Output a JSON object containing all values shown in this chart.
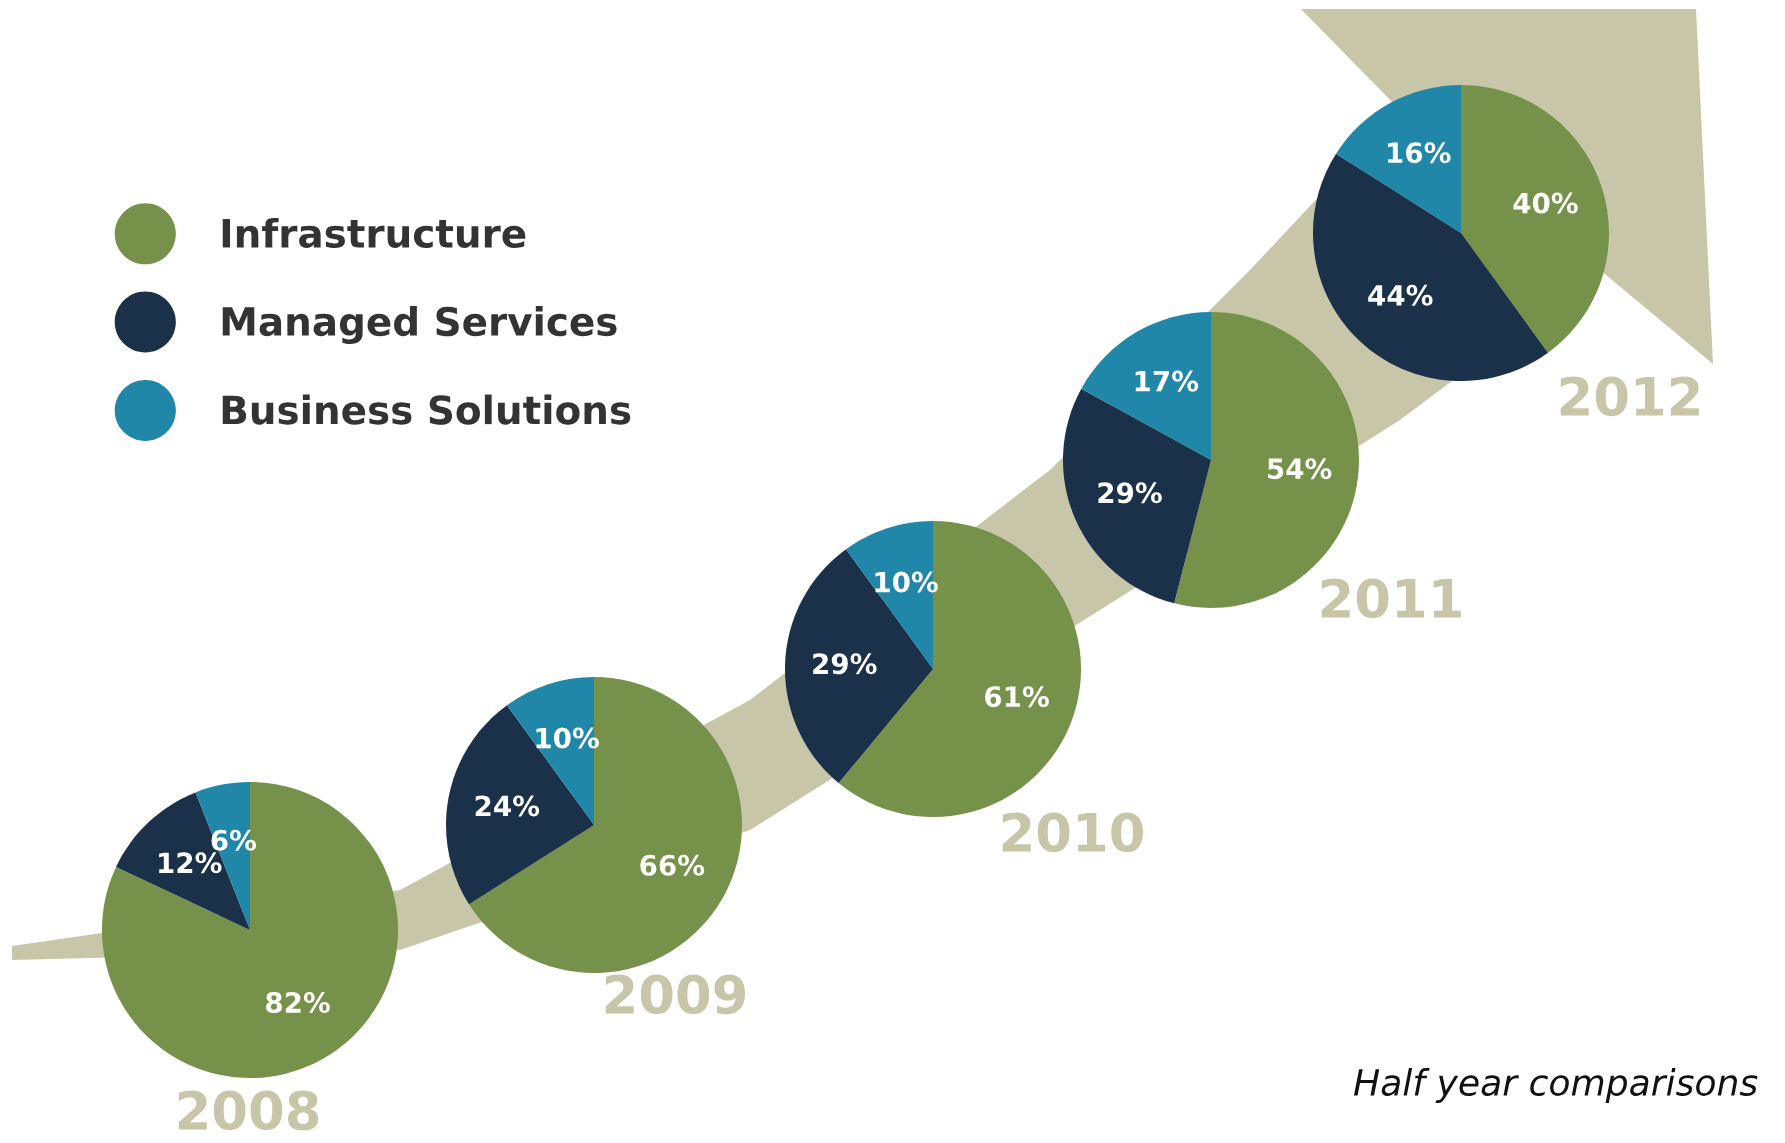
{
  "chart_data": [
    {
      "type": "pie",
      "title": "2008",
      "categories": [
        "Infrastructure",
        "Managed Services",
        "Business Solutions"
      ],
      "values": [
        82,
        12,
        6
      ],
      "value_labels": [
        "82%",
        "12%",
        "6%"
      ],
      "colors": [
        "#76924a",
        "#1b3149",
        "#2087a8"
      ],
      "legend": "top right"
    },
    {
      "type": "pie",
      "title": "2009",
      "values": [
        66,
        24,
        10
      ],
      "value_labels": [
        "66%",
        "24%",
        "10%"
      ],
      "colors": [
        "#76924a",
        "#1b3149",
        "#2087a8"
      ]
    },
    {
      "type": "pie",
      "title": "2010",
      "values": [
        61,
        29,
        10
      ],
      "value_labels": [
        "61%",
        "29%",
        "10%"
      ],
      "colors": [
        "#76924a",
        "#1b3149",
        "#2087a8"
      ]
    },
    {
      "type": "pie",
      "title": "2011",
      "values": [
        54,
        29,
        17
      ],
      "value_labels": [
        "54%",
        "29%",
        "17%"
      ],
      "colors": [
        "#76924a",
        "#1b3149",
        "#2087a8"
      ]
    },
    {
      "type": "pie",
      "title": "2012",
      "values": [
        40,
        44,
        16
      ],
      "value_labels": [
        "40%",
        "44%",
        "16%"
      ],
      "colors": [
        "#76924a",
        "#1b3149",
        "#2087a8"
      ],
      "annotations": [
        "Half year comparisons"
      ]
    }
  ]
}
